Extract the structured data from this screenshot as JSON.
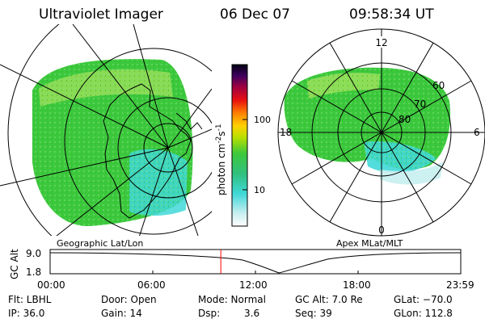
{
  "header": {
    "title": "Ultraviolet Imager",
    "date": "06 Dec 07",
    "time": "09:58:34 UT"
  },
  "colorbar": {
    "unit_label": "photon cm",
    "unit_sup1": "-2",
    "unit_mid": "s",
    "unit_sup2": "-1",
    "ticks": [
      "100",
      "10"
    ]
  },
  "left_map": {
    "caption": "Geographic Lat/Lon"
  },
  "right_map": {
    "caption": "Apex MLat/MLT",
    "mlt_labels": {
      "top": "12",
      "left": "18",
      "right": "6",
      "bottom": "0"
    },
    "lat_labels": [
      "60",
      "70",
      "80"
    ]
  },
  "altitude_plot": {
    "ylabel": "GC Alt",
    "yticks": [
      "9.0",
      "1.8"
    ],
    "xticks": [
      "00:00",
      "06:00",
      "12:00",
      "18:00",
      "23:59"
    ],
    "current_time_fraction": 0.4157
  },
  "status": {
    "row1": {
      "flt": "Flt: LBHL",
      "door": "Door: Open",
      "mode": "Mode: Normal",
      "gcalt": "GC Alt: 7.0 Re",
      "glat": "GLat: −70.0"
    },
    "row2": {
      "ip": "IP: 36.0",
      "gain": "Gain: 14",
      "dsp_label": "Dsp:",
      "dsp_value": "3.6",
      "seq": "Seq: 39",
      "glon": "GLon: 112.8"
    }
  },
  "colors": {
    "green": "#3cc83c",
    "lime": "#9ee05a",
    "cyan": "#40d8d8",
    "pale_cyan": "#c8eef0",
    "time_marker": "#ff0000"
  }
}
